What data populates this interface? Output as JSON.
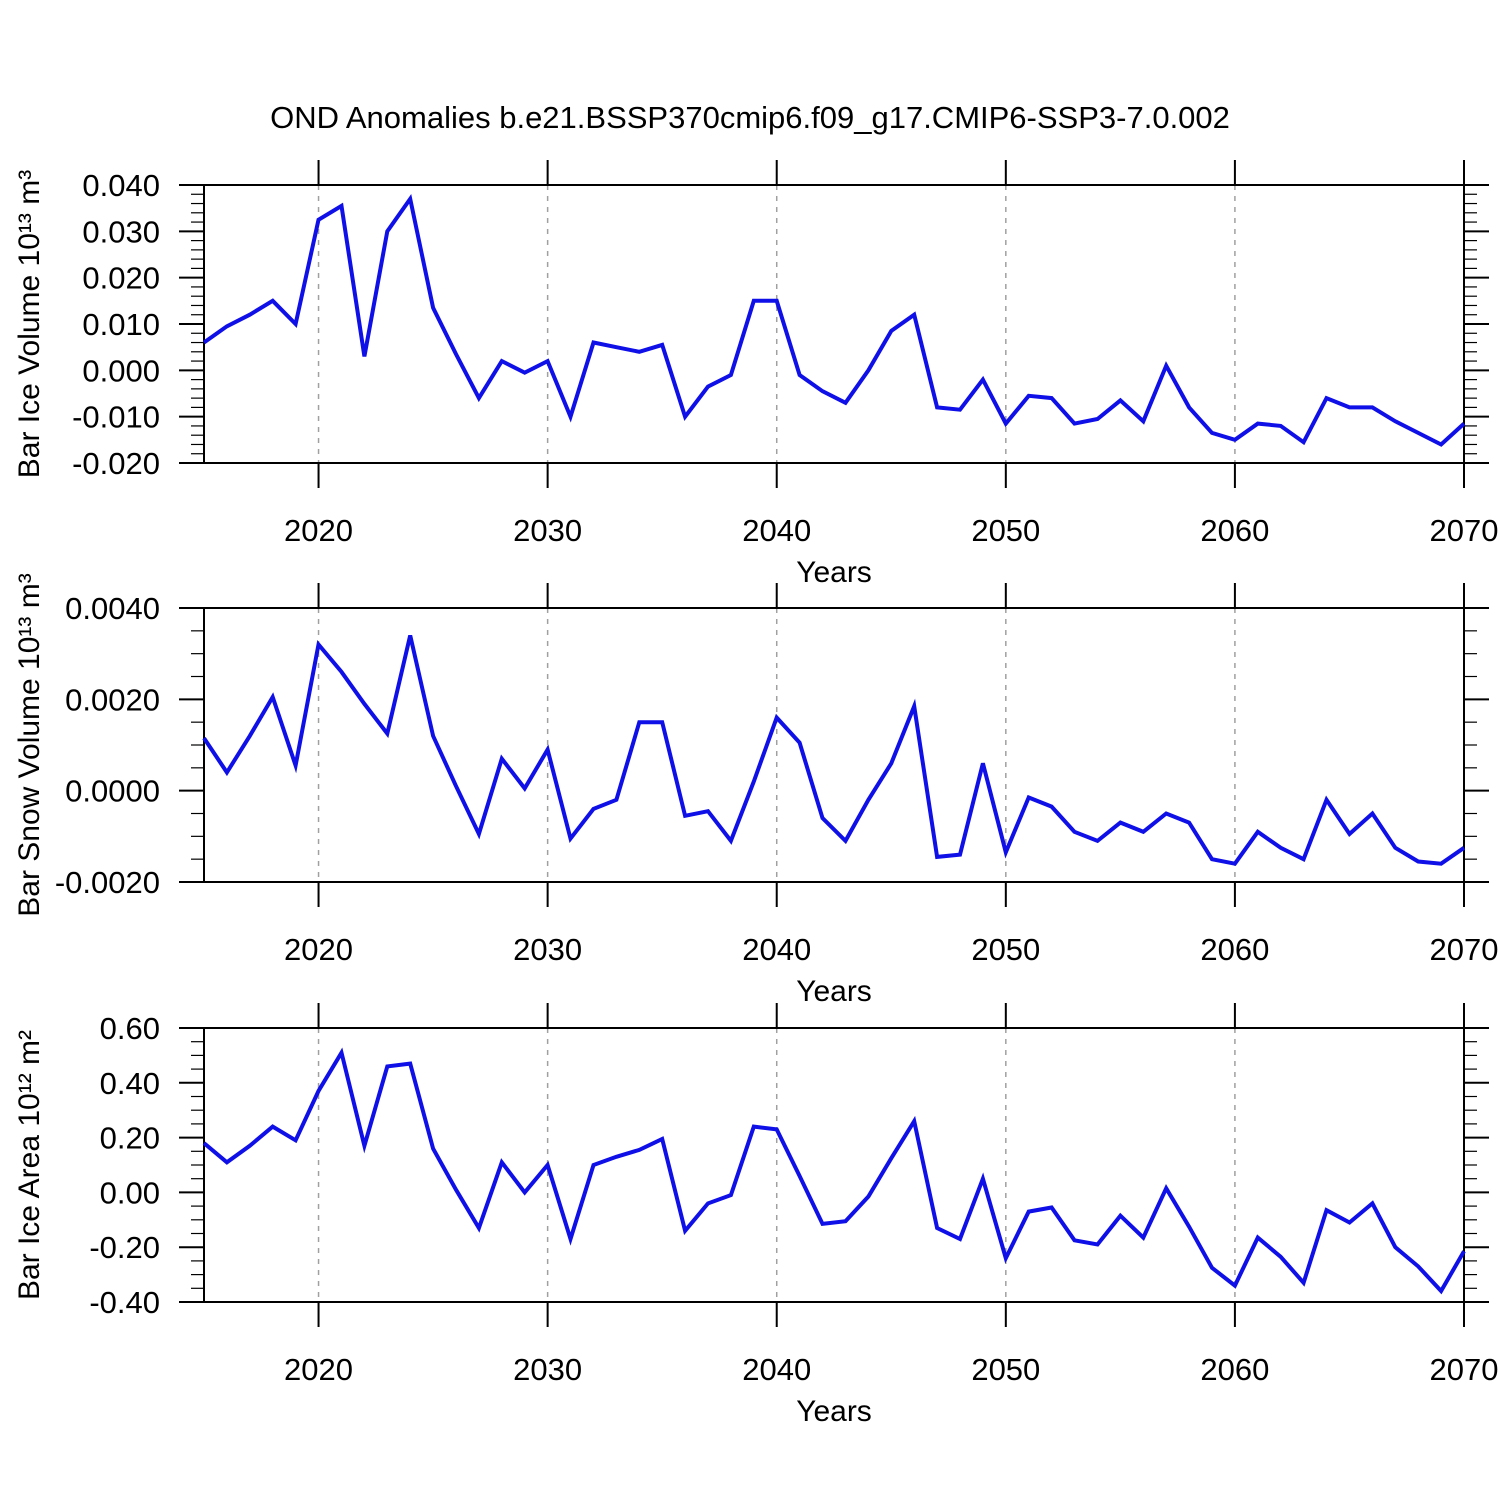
{
  "page": {
    "title": "OND Anomalies b.e21.BSSP370cmip6.f09_g17.CMIP6-SSP3-7.0.002"
  },
  "style": {
    "line_color": "#0f0fe8",
    "grid_color": "#a0a0a0",
    "axis_color": "#000000"
  },
  "x_axis": {
    "label": "Years",
    "range": [
      2015,
      2070
    ],
    "major_ticks": [
      2020,
      2030,
      2040,
      2050,
      2060,
      2070
    ],
    "tick_labels": [
      "2020",
      "2030",
      "2040",
      "2050",
      "2060",
      "2070"
    ],
    "minor_step_years": 2,
    "dashed_gridlines": [
      2020,
      2030,
      2040,
      2050,
      2060
    ]
  },
  "years": [
    2015,
    2016,
    2017,
    2018,
    2019,
    2020,
    2021,
    2022,
    2023,
    2024,
    2025,
    2026,
    2027,
    2028,
    2029,
    2030,
    2031,
    2032,
    2033,
    2034,
    2035,
    2036,
    2037,
    2038,
    2039,
    2040,
    2041,
    2042,
    2043,
    2044,
    2045,
    2046,
    2047,
    2048,
    2049,
    2050,
    2051,
    2052,
    2053,
    2054,
    2055,
    2056,
    2057,
    2058,
    2059,
    2060,
    2061,
    2062,
    2063,
    2064,
    2065,
    2066,
    2067,
    2068,
    2069,
    2070
  ],
  "chart_data": [
    {
      "type": "line",
      "title": "OND Anomalies b.e21.BSSP370cmip6.f09_g17.CMIP6-SSP3-7.0.002",
      "xlabel": "Years",
      "ylabel": "Bar Ice Volume 10¹³ m³",
      "ylim": [
        -0.02,
        0.04
      ],
      "y_major_step": 0.01,
      "y_minor_step": 0.002,
      "y_tick_values": [
        0.04,
        0.03,
        0.02,
        0.01,
        0.0,
        -0.01,
        -0.02
      ],
      "y_tick_labels": [
        "0.040",
        "0.030",
        "0.020",
        "0.010",
        "0.000",
        "-0.010",
        "-0.020"
      ],
      "grid": "vertical-dashed-decades",
      "legend": "none",
      "values": [
        0.006,
        0.0095,
        0.012,
        0.015,
        0.01,
        0.0325,
        0.0355,
        0.003,
        0.03,
        0.037,
        0.0135,
        0.0035,
        -0.006,
        0.002,
        -0.0005,
        0.002,
        -0.01,
        0.006,
        0.005,
        0.004,
        0.0055,
        -0.01,
        -0.0035,
        -0.001,
        0.015,
        0.015,
        -0.001,
        -0.0045,
        -0.007,
        0.0,
        0.0085,
        0.012,
        -0.008,
        -0.0085,
        -0.002,
        -0.0115,
        -0.0055,
        -0.006,
        -0.0115,
        -0.0105,
        -0.0065,
        -0.011,
        0.001,
        -0.008,
        -0.0135,
        -0.015,
        -0.0115,
        -0.012,
        -0.0155,
        -0.006,
        -0.008,
        -0.008,
        -0.011,
        -0.0135,
        -0.016,
        -0.0115
      ]
    },
    {
      "type": "line",
      "xlabel": "Years",
      "ylabel": "Bar Snow Volume 10¹³ m³",
      "ylim": [
        -0.002,
        0.004
      ],
      "y_major_step": 0.002,
      "y_minor_step": 0.0005,
      "y_tick_values": [
        0.004,
        0.002,
        0.0,
        -0.002
      ],
      "y_tick_labels": [
        "0.0040",
        "0.0020",
        "0.0000",
        "-0.0020"
      ],
      "grid": "vertical-dashed-decades",
      "legend": "none",
      "values": [
        0.00115,
        0.0004,
        0.0012,
        0.00205,
        0.00055,
        0.0032,
        0.0026,
        0.0019,
        0.00125,
        0.0034,
        0.0012,
        0.0001,
        -0.00095,
        0.0007,
        5e-05,
        0.0009,
        -0.00105,
        -0.0004,
        -0.0002,
        0.0015,
        0.0015,
        -0.00055,
        -0.00045,
        -0.0011,
        0.0002,
        0.0016,
        0.00105,
        -0.0006,
        -0.0011,
        -0.0002,
        0.0006,
        0.00185,
        -0.00145,
        -0.0014,
        0.0006,
        -0.00135,
        -0.00015,
        -0.00035,
        -0.0009,
        -0.0011,
        -0.0007,
        -0.0009,
        -0.0005,
        -0.0007,
        -0.0015,
        -0.0016,
        -0.0009,
        -0.00125,
        -0.0015,
        -0.0002,
        -0.00095,
        -0.0005,
        -0.00125,
        -0.00155,
        -0.0016,
        -0.00125
      ]
    },
    {
      "type": "line",
      "xlabel": "Years",
      "ylabel": "Bar Ice Area 10¹² m²",
      "ylim": [
        -0.4,
        0.6
      ],
      "y_major_step": 0.2,
      "y_minor_step": 0.05,
      "y_tick_values": [
        0.6,
        0.4,
        0.2,
        0.0,
        -0.2,
        -0.4
      ],
      "y_tick_labels": [
        "0.60",
        "0.40",
        "0.20",
        "0.00",
        "-0.20",
        "-0.40"
      ],
      "grid": "vertical-dashed-decades",
      "legend": "none",
      "values": [
        0.18,
        0.11,
        0.17,
        0.24,
        0.19,
        0.37,
        0.51,
        0.17,
        0.46,
        0.47,
        0.16,
        0.01,
        -0.13,
        0.11,
        0.0,
        0.1,
        -0.17,
        0.1,
        0.13,
        0.155,
        0.195,
        -0.14,
        -0.04,
        -0.01,
        0.24,
        0.23,
        0.06,
        -0.115,
        -0.105,
        -0.015,
        0.125,
        0.26,
        -0.13,
        -0.17,
        0.05,
        -0.24,
        -0.07,
        -0.055,
        -0.175,
        -0.19,
        -0.085,
        -0.165,
        0.015,
        -0.125,
        -0.275,
        -0.34,
        -0.165,
        -0.235,
        -0.33,
        -0.065,
        -0.11,
        -0.04,
        -0.2,
        -0.27,
        -0.36,
        -0.215
      ]
    }
  ]
}
